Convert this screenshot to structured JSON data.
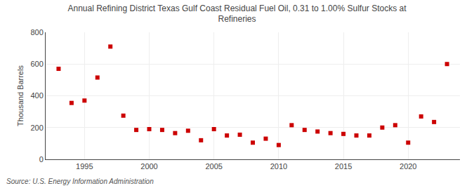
{
  "chart_data": {
    "type": "scatter",
    "title": "Annual Refining District Texas Gulf Coast Residual Fuel Oil, 0.31 to 1.00% Sulfur Stocks at\nRefineries",
    "ylabel": "Thousand Barrels",
    "annotations": [
      "Source: U.S. Energy Information Administration"
    ],
    "x": [
      1993,
      1994,
      1995,
      1996,
      1997,
      1998,
      1999,
      2000,
      2001,
      2002,
      2003,
      2004,
      2005,
      2006,
      2007,
      2008,
      2009,
      2010,
      2011,
      2012,
      2013,
      2014,
      2015,
      2016,
      2017,
      2018,
      2019,
      2020,
      2021,
      2022,
      2023
    ],
    "values": [
      570,
      355,
      370,
      515,
      710,
      275,
      185,
      190,
      185,
      165,
      180,
      120,
      190,
      150,
      155,
      105,
      130,
      90,
      215,
      185,
      175,
      165,
      160,
      150,
      150,
      200,
      215,
      105,
      270,
      235,
      600
    ],
    "color": "#cc0000",
    "marker": "square",
    "xlim": [
      1992,
      2024
    ],
    "ylim": [
      0,
      800
    ],
    "xticks": [
      1995,
      2000,
      2005,
      2010,
      2015,
      2020
    ],
    "yticks": [
      0,
      200,
      400,
      600,
      800
    ],
    "grid": true
  }
}
